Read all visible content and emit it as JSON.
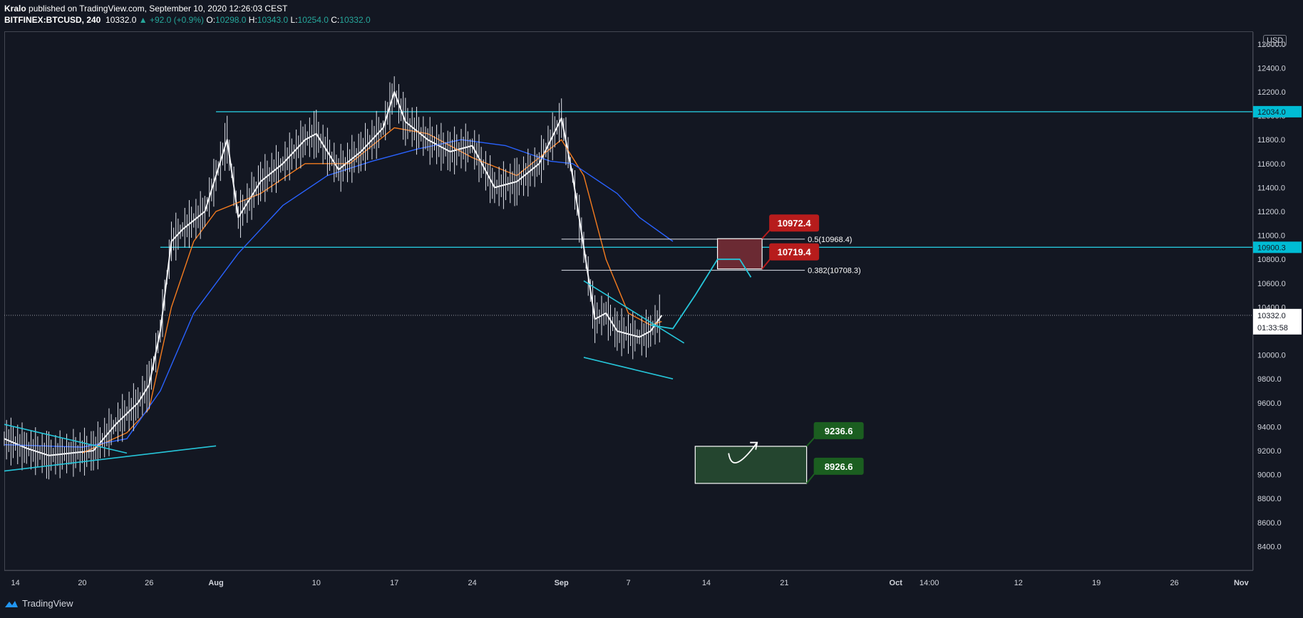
{
  "header": {
    "author": "Kralo",
    "published": "published on TradingView.com, September 10, 2020 12:26:03 CEST",
    "symbol": "BITFINEX:BTCUSD, 240",
    "last": "10332.0",
    "change": "▲ +92.0 (+0.9%)",
    "o_label": "O:",
    "o": "10298.0",
    "h_label": "H:",
    "h": "10343.0",
    "l_label": "L:",
    "l": "10254.0",
    "c_label": "C:",
    "c": "10332.0"
  },
  "currency": "USD",
  "footer": {
    "brand": "TradingView"
  },
  "chart_data": {
    "type": "line",
    "title": "BITFINEX:BTCUSD, 240",
    "ylim": [
      8200,
      12700
    ],
    "y_ticks": [
      8400,
      8600,
      8800,
      9000,
      9200,
      9400,
      9600,
      9800,
      10000,
      10200,
      10400,
      10600,
      10800,
      11000,
      11200,
      11400,
      11600,
      11800,
      12000,
      12200,
      12400,
      12600
    ],
    "y_tick_labels": [
      "8400.0",
      "8600.0",
      "8800.0",
      "9000.0",
      "9200.0",
      "9400.0",
      "9600.0",
      "9800.0",
      "10000.0",
      "10200.0",
      "10400.0",
      "10600.0",
      "10800.0",
      "11000.0",
      "11200.0",
      "11400.0",
      "11600.0",
      "11800.0",
      "12000.0",
      "12200.0",
      "12400.0",
      "12600.0"
    ],
    "x_domain": [
      "2020-07-13",
      "2020-11-02"
    ],
    "x_ticks": [
      {
        "date": "2020-07-14",
        "label": "14"
      },
      {
        "date": "2020-07-20",
        "label": "20"
      },
      {
        "date": "2020-07-26",
        "label": "26"
      },
      {
        "date": "2020-08-01",
        "label": "Aug"
      },
      {
        "date": "2020-08-10",
        "label": "10"
      },
      {
        "date": "2020-08-17",
        "label": "17"
      },
      {
        "date": "2020-08-24",
        "label": "24"
      },
      {
        "date": "2020-09-01",
        "label": "Sep"
      },
      {
        "date": "2020-09-07",
        "label": "7"
      },
      {
        "date": "2020-09-14",
        "label": "14"
      },
      {
        "date": "2020-09-21",
        "label": "21"
      },
      {
        "date": "2020-10-01",
        "label": "Oct"
      },
      {
        "date": "2020-10-04",
        "label": "14:00"
      },
      {
        "date": "2020-10-12",
        "label": "12"
      },
      {
        "date": "2020-10-19",
        "label": "19"
      },
      {
        "date": "2020-10-26",
        "label": "26"
      },
      {
        "date": "2020-11-01",
        "label": "Nov"
      }
    ],
    "series": [
      {
        "color": "#ffffff",
        "points": [
          [
            "2020-07-13",
            9300
          ],
          [
            "2020-07-15",
            9220
          ],
          [
            "2020-07-17",
            9160
          ],
          [
            "2020-07-19",
            9180
          ],
          [
            "2020-07-21",
            9200
          ],
          [
            "2020-07-23",
            9420
          ],
          [
            "2020-07-25",
            9600
          ],
          [
            "2020-07-26",
            9750
          ],
          [
            "2020-07-27",
            10200
          ],
          [
            "2020-07-28",
            10950
          ],
          [
            "2020-07-29",
            11050
          ],
          [
            "2020-07-31",
            11200
          ],
          [
            "2020-08-02",
            11800
          ],
          [
            "2020-08-03",
            11150
          ],
          [
            "2020-08-05",
            11450
          ],
          [
            "2020-08-07",
            11600
          ],
          [
            "2020-08-09",
            11800
          ],
          [
            "2020-08-10",
            11850
          ],
          [
            "2020-08-12",
            11550
          ],
          [
            "2020-08-14",
            11700
          ],
          [
            "2020-08-16",
            11900
          ],
          [
            "2020-08-17",
            12200
          ],
          [
            "2020-08-18",
            11950
          ],
          [
            "2020-08-20",
            11800
          ],
          [
            "2020-08-22",
            11700
          ],
          [
            "2020-08-24",
            11750
          ],
          [
            "2020-08-26",
            11400
          ],
          [
            "2020-08-28",
            11450
          ],
          [
            "2020-08-30",
            11600
          ],
          [
            "2020-09-01",
            11980
          ],
          [
            "2020-09-02",
            11500
          ],
          [
            "2020-09-03",
            10900
          ],
          [
            "2020-09-04",
            10300
          ],
          [
            "2020-09-05",
            10350
          ],
          [
            "2020-09-06",
            10200
          ],
          [
            "2020-09-08",
            10150
          ],
          [
            "2020-09-09",
            10200
          ],
          [
            "2020-09-10",
            10332
          ]
        ]
      },
      {
        "color": "#f57c1f",
        "points": [
          [
            "2020-07-20",
            9180
          ],
          [
            "2020-07-24",
            9350
          ],
          [
            "2020-07-26",
            9550
          ],
          [
            "2020-07-28",
            10400
          ],
          [
            "2020-07-30",
            10950
          ],
          [
            "2020-08-01",
            11200
          ],
          [
            "2020-08-05",
            11350
          ],
          [
            "2020-08-09",
            11600
          ],
          [
            "2020-08-13",
            11600
          ],
          [
            "2020-08-17",
            11900
          ],
          [
            "2020-08-20",
            11850
          ],
          [
            "2020-08-24",
            11650
          ],
          [
            "2020-08-28",
            11500
          ],
          [
            "2020-09-01",
            11800
          ],
          [
            "2020-09-03",
            11500
          ],
          [
            "2020-09-05",
            10800
          ],
          [
            "2020-09-07",
            10350
          ],
          [
            "2020-09-09",
            10250
          ],
          [
            "2020-09-10",
            10280
          ]
        ]
      },
      {
        "color": "#2962ff",
        "points": [
          [
            "2020-07-13",
            9250
          ],
          [
            "2020-07-20",
            9230
          ],
          [
            "2020-07-24",
            9300
          ],
          [
            "2020-07-27",
            9700
          ],
          [
            "2020-07-30",
            10350
          ],
          [
            "2020-08-03",
            10850
          ],
          [
            "2020-08-07",
            11250
          ],
          [
            "2020-08-11",
            11500
          ],
          [
            "2020-08-15",
            11620
          ],
          [
            "2020-08-19",
            11720
          ],
          [
            "2020-08-23",
            11800
          ],
          [
            "2020-08-27",
            11750
          ],
          [
            "2020-08-31",
            11620
          ],
          [
            "2020-09-02",
            11600
          ],
          [
            "2020-09-06",
            11350
          ],
          [
            "2020-09-08",
            11150
          ],
          [
            "2020-09-11",
            10950
          ]
        ]
      }
    ],
    "horizontal_levels": [
      {
        "value": 12034.0,
        "label": "12034.0",
        "from": "2020-08-01"
      },
      {
        "value": 10900.3,
        "label": "10900.3",
        "from": "2020-07-27"
      }
    ],
    "current_price": {
      "value": 10332.0,
      "label": "10332.0",
      "countdown": "01:33:58"
    },
    "fib_levels": [
      {
        "value": 10968.4,
        "label": "0.5(10968.4)"
      },
      {
        "value": 10708.3,
        "label": "0.382(10708.3)"
      }
    ],
    "zones": [
      {
        "top": 10972.4,
        "bottom": 10719.4,
        "from": "2020-09-15",
        "to": "2020-09-19",
        "fill": "#6b2a33",
        "callout_top": "10972.4",
        "callout_bottom": "10719.4",
        "callout_color": "#b71c1c"
      },
      {
        "top": 9236.6,
        "bottom": 8926.6,
        "from": "2020-09-13",
        "to": "2020-09-23",
        "fill": "#24452f",
        "callout_top": "9236.6",
        "callout_bottom": "8926.6",
        "callout_color": "#1b5e20"
      }
    ]
  }
}
